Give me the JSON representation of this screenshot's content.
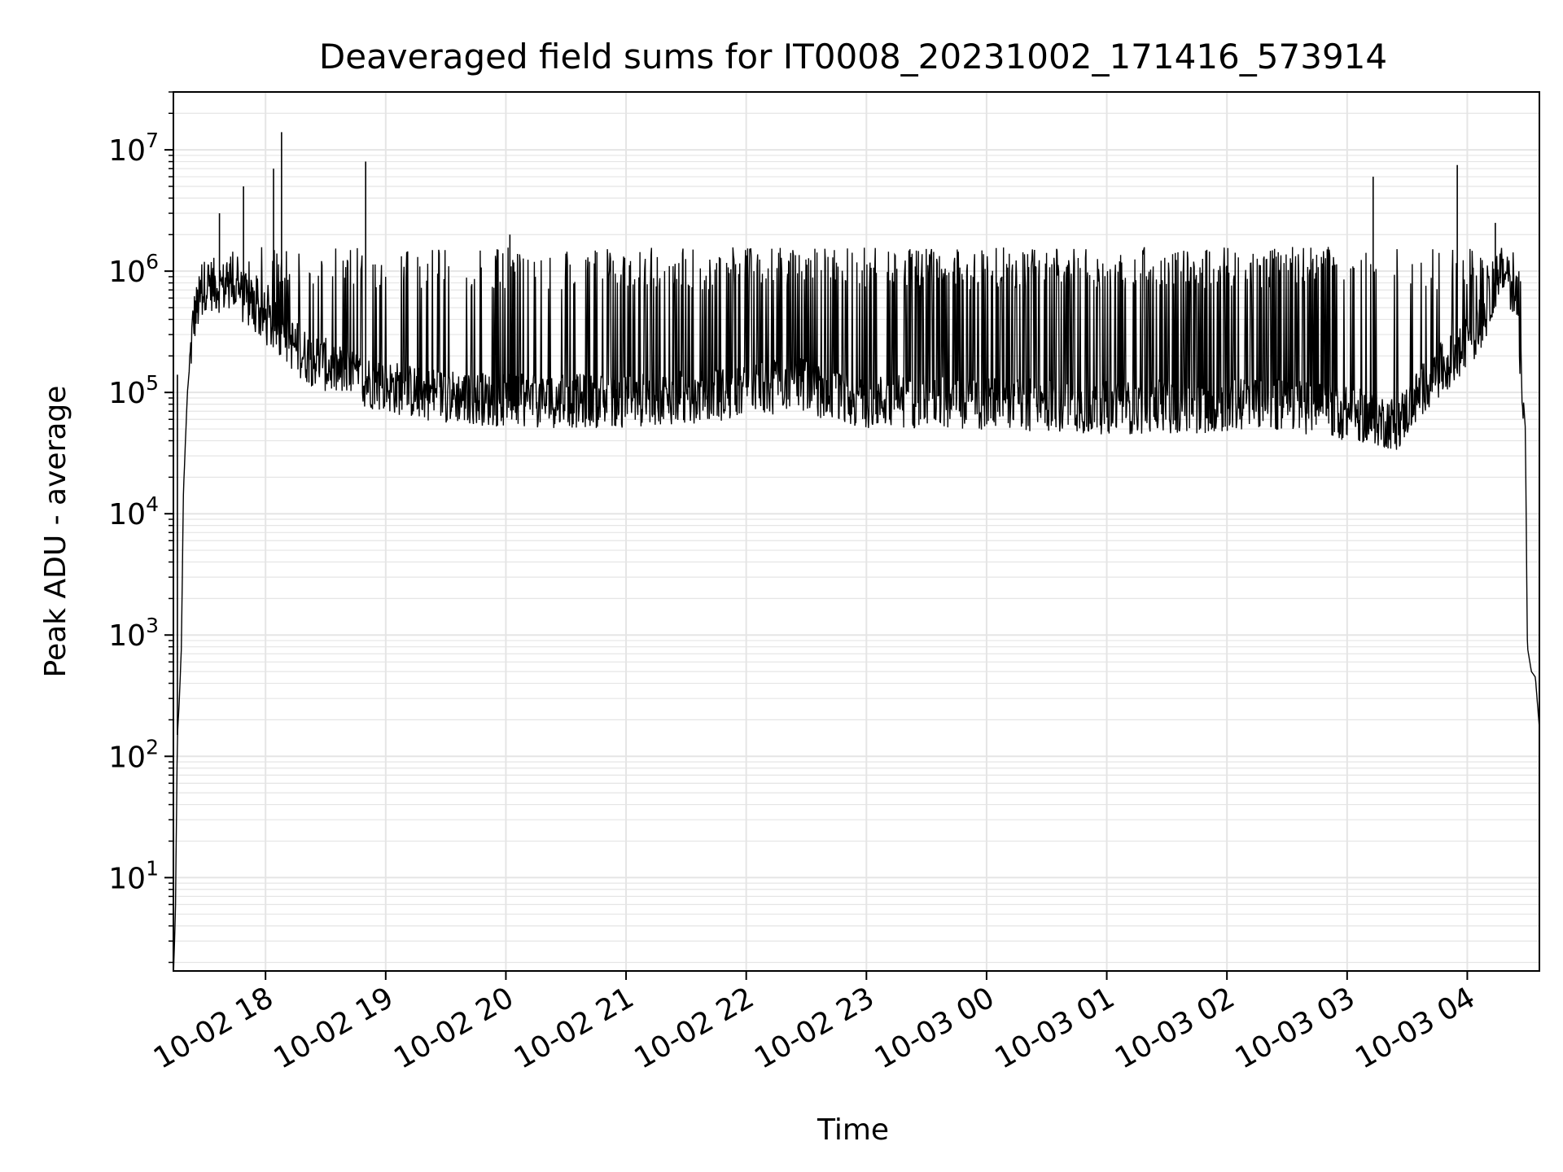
{
  "chart_data": {
    "type": "line",
    "title": "Deaveraged field sums for IT0008_20231002_171416_573914",
    "xlabel": "Time",
    "ylabel": "Peak ADU - average",
    "y_scale": "log",
    "ylim": [
      1.7,
      30000000
    ],
    "xlim": [
      "2023-10-02 17:14",
      "2023-10-03 04:36"
    ],
    "grid": true,
    "x_ticks": [
      "2023-10-02 18:00",
      "2023-10-02 19:00",
      "2023-10-02 20:00",
      "2023-10-02 21:00",
      "2023-10-02 22:00",
      "2023-10-02 23:00",
      "2023-10-03 00:00",
      "2023-10-03 01:00",
      "2023-10-03 02:00",
      "2023-10-03 03:00",
      "2023-10-03 04:00"
    ],
    "x_tick_labels": [
      "10-02 18",
      "10-02 19",
      "10-02 20",
      "10-02 21",
      "10-02 22",
      "10-02 23",
      "10-03 00",
      "10-03 01",
      "10-03 02",
      "10-03 03",
      "10-03 04"
    ],
    "y_ticks": [
      10,
      100,
      1000,
      10000,
      100000,
      1000000,
      10000000
    ],
    "y_tick_labels": [
      {
        "base": "10",
        "exp": "1"
      },
      {
        "base": "10",
        "exp": "2"
      },
      {
        "base": "10",
        "exp": "3"
      },
      {
        "base": "10",
        "exp": "4"
      },
      {
        "base": "10",
        "exp": "5"
      },
      {
        "base": "10",
        "exp": "6"
      },
      {
        "base": "10",
        "exp": "7"
      }
    ],
    "line_color": "#000000",
    "grid_color": "#e5e5e5",
    "series": [
      {
        "baseline": [
          [
            "2023-10-02 17:14",
            1.5
          ],
          [
            "2023-10-02 17:15",
            5
          ],
          [
            "2023-10-02 17:16",
            150
          ],
          [
            "2023-10-02 17:17",
            300
          ],
          [
            "2023-10-02 17:18",
            800
          ],
          [
            "2023-10-02 17:19",
            15000
          ],
          [
            "2023-10-02 17:21",
            100000
          ],
          [
            "2023-10-02 17:24",
            400000
          ],
          [
            "2023-10-02 17:30",
            800000
          ],
          [
            "2023-10-02 17:45",
            700000
          ],
          [
            "2023-10-02 18:00",
            400000
          ],
          [
            "2023-10-02 18:20",
            200000
          ],
          [
            "2023-10-02 18:45",
            130000
          ],
          [
            "2023-10-02 19:15",
            100000
          ],
          [
            "2023-10-02 20:00",
            85000
          ],
          [
            "2023-10-02 21:00",
            85000
          ],
          [
            "2023-10-02 22:00",
            100000
          ],
          [
            "2023-10-02 22:25",
            120000
          ],
          [
            "2023-10-02 22:50",
            85000
          ],
          [
            "2023-10-02 23:30",
            85000
          ],
          [
            "2023-10-03 00:00",
            80000
          ],
          [
            "2023-10-03 01:00",
            75000
          ],
          [
            "2023-10-03 02:00",
            78000
          ],
          [
            "2023-10-03 02:30",
            80000
          ],
          [
            "2023-10-03 03:05",
            65000
          ],
          [
            "2023-10-03 03:25",
            55000
          ],
          [
            "2023-10-03 03:40",
            120000
          ],
          [
            "2023-10-03 03:55",
            200000
          ],
          [
            "2023-10-03 04:08",
            400000
          ],
          [
            "2023-10-03 04:15",
            900000
          ],
          [
            "2023-10-03 04:20",
            1000000
          ],
          [
            "2023-10-03 04:25",
            500000
          ],
          [
            "2023-10-03 04:29",
            50000
          ],
          [
            "2023-10-03 04:30",
            800
          ],
          [
            "2023-10-03 04:32",
            500
          ],
          [
            "2023-10-03 04:34",
            450
          ],
          [
            "2023-10-03 04:36",
            170
          ]
        ],
        "spikes": [
          [
            "2023-10-02 17:16",
            140000
          ],
          [
            "2023-10-02 17:37",
            3000000
          ],
          [
            "2023-10-02 17:49",
            5000000
          ],
          [
            "2023-10-02 18:04",
            7000000
          ],
          [
            "2023-10-02 18:08",
            14000000
          ],
          [
            "2023-10-02 18:50",
            8000000
          ],
          [
            "2023-10-02 20:02",
            2000000
          ],
          [
            "2023-10-03 03:13",
            6000000
          ],
          [
            "2023-10-03 03:55",
            7500000
          ],
          [
            "2023-10-03 04:14",
            2500000
          ]
        ]
      }
    ]
  }
}
